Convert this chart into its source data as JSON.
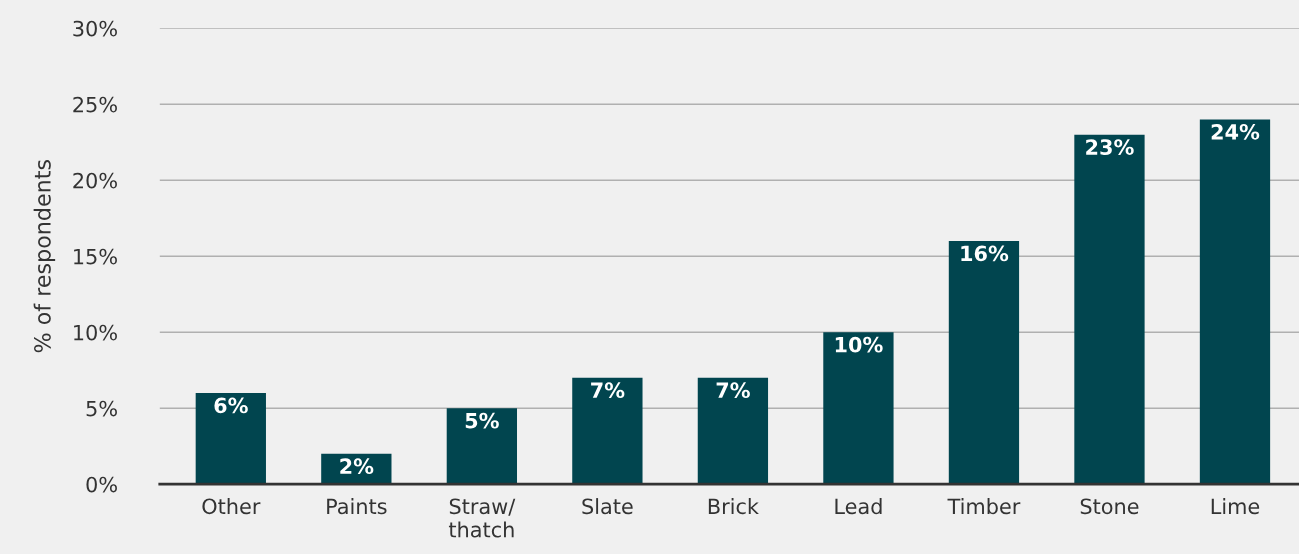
{
  "chart_data": {
    "type": "bar",
    "ylabel": "% of respondents",
    "categories": [
      "Other",
      "Paints",
      "Straw/\nthatch",
      "Slate",
      "Brick",
      "Lead",
      "Timber",
      "Stone",
      "Lime"
    ],
    "values": [
      6,
      2,
      5,
      7,
      7,
      10,
      16,
      23,
      24
    ],
    "value_labels": [
      "6%",
      "2%",
      "5%",
      "7%",
      "7%",
      "10%",
      "16%",
      "23%",
      "24%"
    ],
    "color": "#01454f",
    "ylim": [
      0,
      30
    ],
    "yticks": [
      {
        "value": 0,
        "label": "0%"
      },
      {
        "value": 5,
        "label": "5%"
      },
      {
        "value": 10,
        "label": "10%"
      },
      {
        "value": 15,
        "label": "15%"
      },
      {
        "value": 20,
        "label": "20%"
      },
      {
        "value": 25,
        "label": "25%"
      },
      {
        "value": 30,
        "label": "30%"
      }
    ],
    "grid": "y",
    "legend": false
  }
}
